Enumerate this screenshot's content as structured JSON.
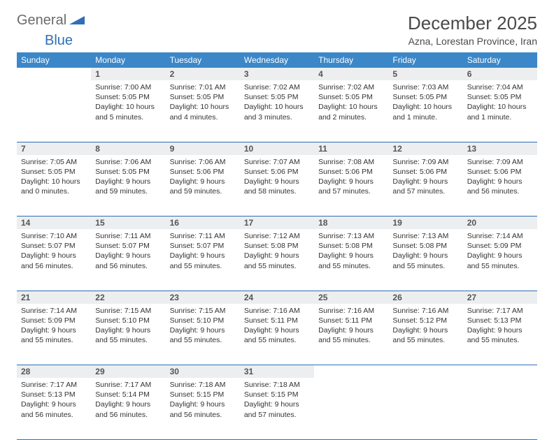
{
  "logo": {
    "general": "General",
    "blue": "Blue"
  },
  "title": "December 2025",
  "location": "Azna, Lorestan Province, Iran",
  "colors": {
    "header_bg": "#3b87c8",
    "header_text": "#ffffff",
    "daynum_bg": "#eceef0",
    "row_border": "#2f6fb5",
    "body_text": "#333333",
    "logo_gray": "#6b6b6b",
    "logo_blue": "#2f6fb5"
  },
  "weekdays": [
    "Sunday",
    "Monday",
    "Tuesday",
    "Wednesday",
    "Thursday",
    "Friday",
    "Saturday"
  ],
  "weeks": [
    [
      null,
      {
        "n": "1",
        "sr": "7:00 AM",
        "ss": "5:05 PM",
        "d": "10 hours and 5 minutes."
      },
      {
        "n": "2",
        "sr": "7:01 AM",
        "ss": "5:05 PM",
        "d": "10 hours and 4 minutes."
      },
      {
        "n": "3",
        "sr": "7:02 AM",
        "ss": "5:05 PM",
        "d": "10 hours and 3 minutes."
      },
      {
        "n": "4",
        "sr": "7:02 AM",
        "ss": "5:05 PM",
        "d": "10 hours and 2 minutes."
      },
      {
        "n": "5",
        "sr": "7:03 AM",
        "ss": "5:05 PM",
        "d": "10 hours and 1 minute."
      },
      {
        "n": "6",
        "sr": "7:04 AM",
        "ss": "5:05 PM",
        "d": "10 hours and 1 minute."
      }
    ],
    [
      {
        "n": "7",
        "sr": "7:05 AM",
        "ss": "5:05 PM",
        "d": "10 hours and 0 minutes."
      },
      {
        "n": "8",
        "sr": "7:06 AM",
        "ss": "5:05 PM",
        "d": "9 hours and 59 minutes."
      },
      {
        "n": "9",
        "sr": "7:06 AM",
        "ss": "5:06 PM",
        "d": "9 hours and 59 minutes."
      },
      {
        "n": "10",
        "sr": "7:07 AM",
        "ss": "5:06 PM",
        "d": "9 hours and 58 minutes."
      },
      {
        "n": "11",
        "sr": "7:08 AM",
        "ss": "5:06 PM",
        "d": "9 hours and 57 minutes."
      },
      {
        "n": "12",
        "sr": "7:09 AM",
        "ss": "5:06 PM",
        "d": "9 hours and 57 minutes."
      },
      {
        "n": "13",
        "sr": "7:09 AM",
        "ss": "5:06 PM",
        "d": "9 hours and 56 minutes."
      }
    ],
    [
      {
        "n": "14",
        "sr": "7:10 AM",
        "ss": "5:07 PM",
        "d": "9 hours and 56 minutes."
      },
      {
        "n": "15",
        "sr": "7:11 AM",
        "ss": "5:07 PM",
        "d": "9 hours and 56 minutes."
      },
      {
        "n": "16",
        "sr": "7:11 AM",
        "ss": "5:07 PM",
        "d": "9 hours and 55 minutes."
      },
      {
        "n": "17",
        "sr": "7:12 AM",
        "ss": "5:08 PM",
        "d": "9 hours and 55 minutes."
      },
      {
        "n": "18",
        "sr": "7:13 AM",
        "ss": "5:08 PM",
        "d": "9 hours and 55 minutes."
      },
      {
        "n": "19",
        "sr": "7:13 AM",
        "ss": "5:08 PM",
        "d": "9 hours and 55 minutes."
      },
      {
        "n": "20",
        "sr": "7:14 AM",
        "ss": "5:09 PM",
        "d": "9 hours and 55 minutes."
      }
    ],
    [
      {
        "n": "21",
        "sr": "7:14 AM",
        "ss": "5:09 PM",
        "d": "9 hours and 55 minutes."
      },
      {
        "n": "22",
        "sr": "7:15 AM",
        "ss": "5:10 PM",
        "d": "9 hours and 55 minutes."
      },
      {
        "n": "23",
        "sr": "7:15 AM",
        "ss": "5:10 PM",
        "d": "9 hours and 55 minutes."
      },
      {
        "n": "24",
        "sr": "7:16 AM",
        "ss": "5:11 PM",
        "d": "9 hours and 55 minutes."
      },
      {
        "n": "25",
        "sr": "7:16 AM",
        "ss": "5:11 PM",
        "d": "9 hours and 55 minutes."
      },
      {
        "n": "26",
        "sr": "7:16 AM",
        "ss": "5:12 PM",
        "d": "9 hours and 55 minutes."
      },
      {
        "n": "27",
        "sr": "7:17 AM",
        "ss": "5:13 PM",
        "d": "9 hours and 55 minutes."
      }
    ],
    [
      {
        "n": "28",
        "sr": "7:17 AM",
        "ss": "5:13 PM",
        "d": "9 hours and 56 minutes."
      },
      {
        "n": "29",
        "sr": "7:17 AM",
        "ss": "5:14 PM",
        "d": "9 hours and 56 minutes."
      },
      {
        "n": "30",
        "sr": "7:18 AM",
        "ss": "5:15 PM",
        "d": "9 hours and 56 minutes."
      },
      {
        "n": "31",
        "sr": "7:18 AM",
        "ss": "5:15 PM",
        "d": "9 hours and 57 minutes."
      },
      null,
      null,
      null
    ]
  ],
  "labels": {
    "sunrise": "Sunrise:",
    "sunset": "Sunset:",
    "daylight": "Daylight:"
  }
}
